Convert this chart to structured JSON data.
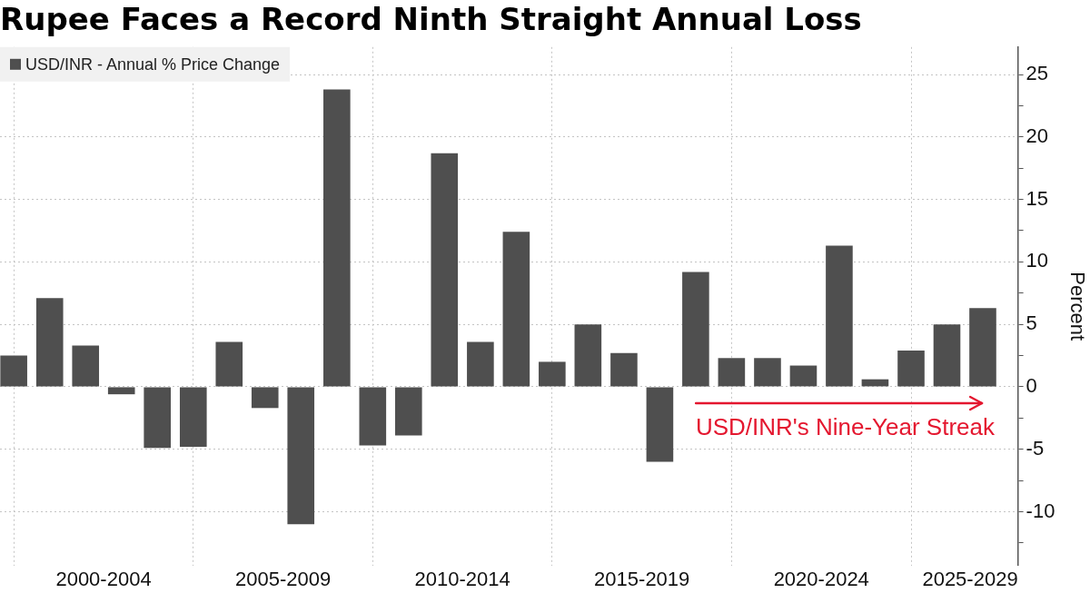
{
  "chart_data": {
    "type": "bar",
    "title": "Rupee Faces a Record Ninth Straight Annual Loss",
    "ylabel": "Percent",
    "x": [
      "1999-12-31",
      "2000-12-31",
      "2001-12-31",
      "2002-12-31",
      "2003-12-31",
      "2004-12-31",
      "2005-12-31",
      "2006-12-31",
      "2007-12-31",
      "2008-12-31",
      "2009-12-31",
      "2010-12-31",
      "2011-12-31",
      "2012-12-31",
      "2013-12-31",
      "2014-12-31",
      "2015-12-31",
      "2016-12-31",
      "2017-12-31",
      "2018-12-31",
      "2019-12-31",
      "2020-12-31",
      "2021-12-31",
      "2022-12-31",
      "2023-12-31",
      "2024-12-31",
      "2025-12-31",
      "2026-12-31"
    ],
    "series": [
      {
        "name": "USD/INR - Annual % Price Change",
        "color": "#4f4f4f",
        "values": [
          2.5,
          7.1,
          3.3,
          -0.6,
          -4.9,
          -4.8,
          3.6,
          -1.7,
          -11.0,
          23.8,
          -4.7,
          -3.9,
          18.7,
          3.6,
          12.4,
          2.0,
          5.0,
          2.7,
          -6.0,
          9.2,
          2.3,
          2.3,
          1.7,
          11.3,
          0.6,
          2.9,
          5.0,
          6.3
        ]
      }
    ],
    "xlim": [
      "1999-08-13",
      "2027-12-23"
    ],
    "xticks": [
      {
        "value": "2000-01-01",
        "label": null
      },
      {
        "value": "2002-07-02",
        "label": "2000-2004"
      },
      {
        "value": "2005-01-01",
        "label": null
      },
      {
        "value": "2007-07-02",
        "label": "2005-2009"
      },
      {
        "value": "2010-01-01",
        "label": null
      },
      {
        "value": "2012-07-02",
        "label": "2010-2014"
      },
      {
        "value": "2015-01-01",
        "label": null
      },
      {
        "value": "2017-07-02",
        "label": "2015-2019"
      },
      {
        "value": "2020-01-01",
        "label": null
      },
      {
        "value": "2022-07-02",
        "label": "2020-2024"
      },
      {
        "value": "2025-01-01",
        "label": null
      },
      {
        "value": "2026-08-24",
        "label": "2025-2029"
      }
    ],
    "ylim": [
      -14.3,
      27.2
    ],
    "yticks": [
      {
        "value": -12.5,
        "label": null
      },
      -10,
      {
        "value": -7.5,
        "label": null
      },
      -5,
      {
        "value": -2.5,
        "label": null
      },
      0,
      {
        "value": 2.5,
        "label": null
      },
      5,
      {
        "value": 7.5,
        "label": null
      },
      10,
      {
        "value": 12.5,
        "label": null
      },
      15,
      {
        "value": 17.5,
        "label": null
      },
      20,
      {
        "value": 22.5,
        "label": null
      },
      25
    ],
    "grid": true,
    "legend": "top left",
    "annotations": [
      "USD/INR's Nine-Year Streak"
    ]
  }
}
